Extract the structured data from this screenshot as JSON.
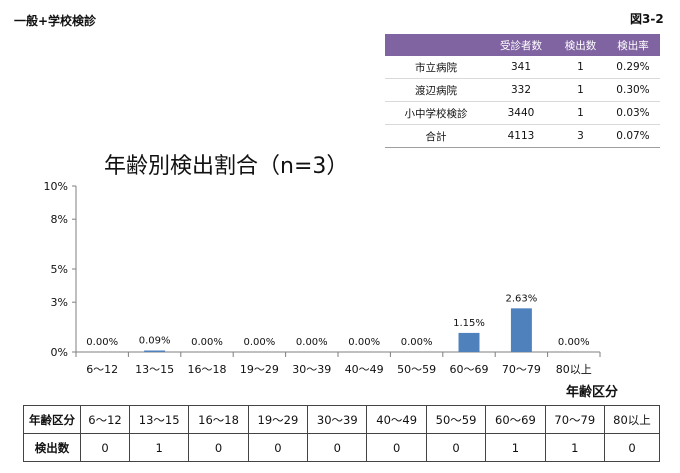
{
  "header": {
    "title": "一般+学校検診",
    "figure_id": "図3-2"
  },
  "summary_table": {
    "columns": [
      "",
      "受診者数",
      "検出数",
      "検出率"
    ],
    "rows": [
      [
        "市立病院",
        "341",
        "1",
        "0.29%"
      ],
      [
        "渡辺病院",
        "332",
        "1",
        "0.30%"
      ],
      [
        "小中学校検診",
        "3440",
        "1",
        "0.03%"
      ],
      [
        "合計",
        "4113",
        "3",
        "0.07%"
      ]
    ]
  },
  "chart_data": {
    "type": "bar",
    "title": "年齢別検出割合（n=3）",
    "xlabel": "年齢区分",
    "ylabel": "",
    "categories": [
      "6～12",
      "13～15",
      "16～18",
      "19～29",
      "30～39",
      "40～49",
      "50～59",
      "60～69",
      "70～79",
      "80以上"
    ],
    "values": [
      0.0,
      0.09,
      0.0,
      0.0,
      0.0,
      0.0,
      0.0,
      1.15,
      2.63,
      0.0
    ],
    "data_labels": [
      "0.00%",
      "0.09%",
      "0.00%",
      "0.00%",
      "0.00%",
      "0.00%",
      "0.00%",
      "1.15%",
      "2.63%",
      "0.00%"
    ],
    "ylim": [
      0,
      10
    ],
    "yticks": [
      0,
      3,
      5,
      8,
      10
    ],
    "ytick_labels": [
      "0%",
      "3%",
      "5%",
      "8%",
      "10%"
    ],
    "grid": false,
    "bar_color": "#4f81bd"
  },
  "bottom_table": {
    "row_headers": [
      "年齢区分",
      "検出数"
    ],
    "categories": [
      "6～12",
      "13～15",
      "16～18",
      "19～29",
      "30～39",
      "40～49",
      "50～59",
      "60～69",
      "70～79",
      "80以上"
    ],
    "counts": [
      "0",
      "1",
      "0",
      "0",
      "0",
      "0",
      "0",
      "1",
      "1",
      "0"
    ]
  }
}
